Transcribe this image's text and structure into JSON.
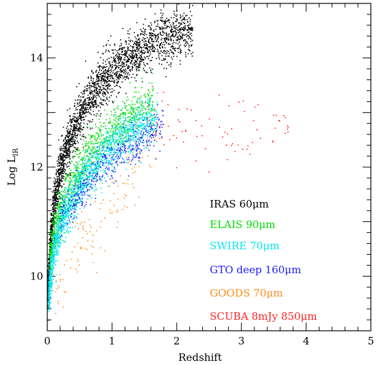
{
  "chart_data": {
    "type": "scatter",
    "title": "",
    "xlabel": "Redshift",
    "ylabel": "Log L",
    "ylabel_subscript": "IR",
    "xlim": [
      0,
      5
    ],
    "ylim": [
      9,
      15
    ],
    "x_ticks": [
      0,
      1,
      2,
      3,
      4,
      5
    ],
    "y_ticks": [
      10,
      12,
      14
    ],
    "grid": false,
    "legend_placement": "bottom-right",
    "series": [
      {
        "name": "IRAS 60μm",
        "color": "#000000",
        "count": 2600,
        "trend": [
          [
            0.02,
            9.8
          ],
          [
            0.05,
            10.6
          ],
          [
            0.1,
            11.3
          ],
          [
            0.2,
            11.95
          ],
          [
            0.35,
            12.5
          ],
          [
            0.5,
            12.95
          ],
          [
            0.8,
            13.5
          ],
          [
            1.2,
            13.95
          ],
          [
            1.6,
            14.25
          ],
          [
            2.0,
            14.45
          ],
          [
            2.2,
            14.5
          ]
        ],
        "spread": 0.22,
        "zmin": 0.01,
        "zmax": 2.25
      },
      {
        "name": "ELAIS 90μm",
        "color": "#00dd00",
        "count": 1100,
        "trend": [
          [
            0.05,
            10.3
          ],
          [
            0.1,
            10.7
          ],
          [
            0.2,
            11.2
          ],
          [
            0.4,
            11.75
          ],
          [
            0.6,
            12.15
          ],
          [
            0.8,
            12.45
          ],
          [
            1.0,
            12.65
          ],
          [
            1.3,
            12.95
          ],
          [
            1.6,
            13.15
          ]
        ],
        "spread": 0.22,
        "zmin": 0.04,
        "zmax": 1.65
      },
      {
        "name": "SWIRE 70μm",
        "color": "#00e5ee",
        "count": 1700,
        "trend": [
          [
            0.03,
            9.7
          ],
          [
            0.1,
            10.4
          ],
          [
            0.2,
            10.9
          ],
          [
            0.4,
            11.45
          ],
          [
            0.6,
            11.85
          ],
          [
            0.8,
            12.1
          ],
          [
            1.0,
            12.35
          ],
          [
            1.3,
            12.6
          ],
          [
            1.6,
            12.85
          ],
          [
            2.0,
            13.1
          ]
        ],
        "spread": 0.2,
        "zmin": 0.02,
        "zmax": 1.7
      },
      {
        "name": "GTO deep 160μm",
        "color": "#1a1aff",
        "count": 420,
        "trend": [
          [
            0.2,
            11.0
          ],
          [
            0.5,
            11.55
          ],
          [
            0.8,
            11.95
          ],
          [
            1.0,
            12.15
          ],
          [
            1.3,
            12.4
          ],
          [
            1.6,
            12.6
          ],
          [
            1.8,
            12.8
          ]
        ],
        "spread": 0.18,
        "zmin": 0.2,
        "zmax": 1.8
      },
      {
        "name": "GOODS 70μm",
        "color": "#ff8c1a",
        "count": 130,
        "trend": [
          [
            0.1,
            9.6
          ],
          [
            0.3,
            10.1
          ],
          [
            0.5,
            10.6
          ],
          [
            0.8,
            11.0
          ],
          [
            1.0,
            11.3
          ],
          [
            1.2,
            11.6
          ],
          [
            1.5,
            12.2
          ],
          [
            1.7,
            12.5
          ]
        ],
        "spread": 0.3,
        "zmin": 0.1,
        "zmax": 1.75
      },
      {
        "name": "SCUBA 8mJy 850μm",
        "color": "#ff2222",
        "count": 80,
        "trend": [
          [
            1.5,
            12.9
          ],
          [
            2.0,
            12.75
          ],
          [
            2.5,
            12.65
          ],
          [
            3.0,
            12.65
          ],
          [
            3.5,
            12.7
          ],
          [
            3.8,
            12.75
          ]
        ],
        "spread": 0.28,
        "zmin": 1.5,
        "zmax": 3.85
      }
    ]
  }
}
